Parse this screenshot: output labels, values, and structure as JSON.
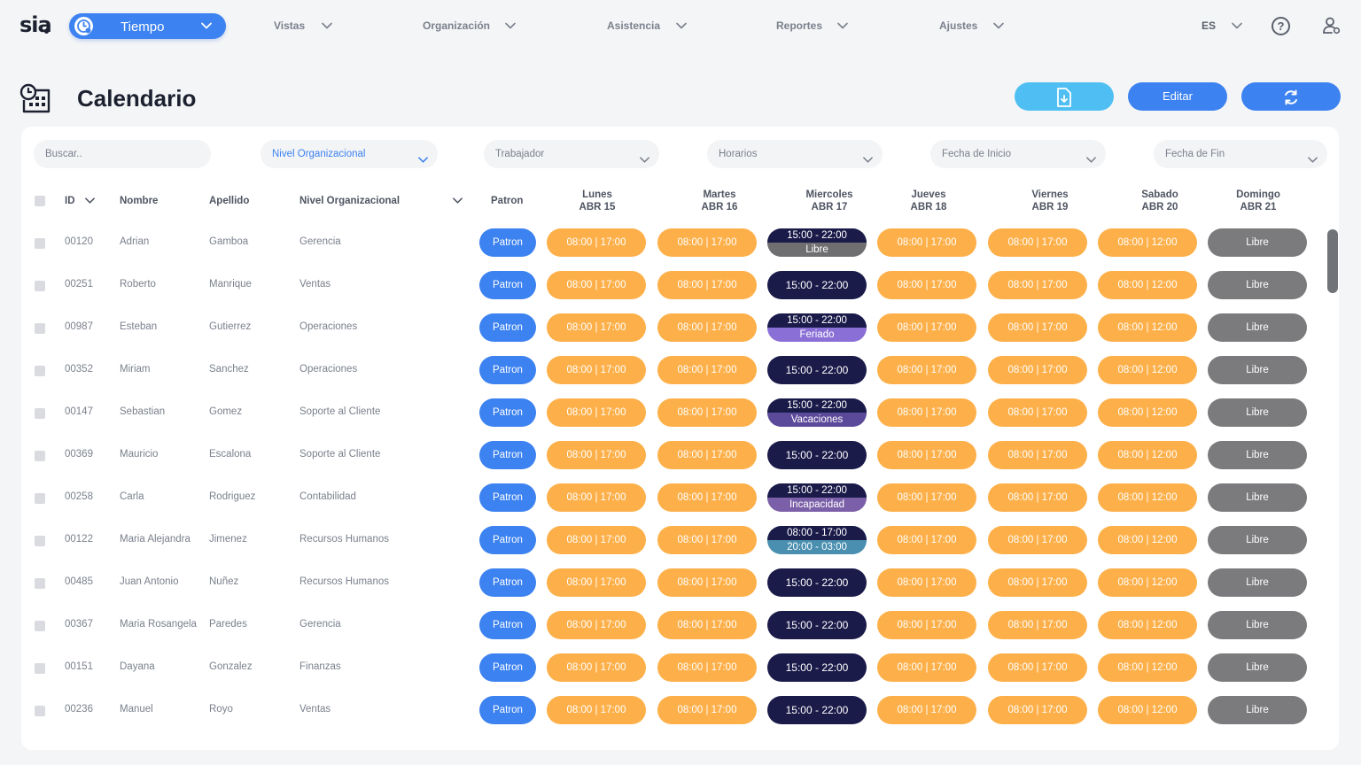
{
  "app": {
    "logo": "sia",
    "module": "Tiempo",
    "nav": [
      "Vistas",
      "Organización",
      "Asistencia",
      "Reportes",
      "Ajustes"
    ],
    "language": "ES",
    "help": "?"
  },
  "page": {
    "title": "Calendario",
    "buttons": {
      "export": "",
      "edit": "Editar",
      "refresh": ""
    }
  },
  "filters": {
    "search_placeholder": "Buscar..",
    "nivel": "Nivel Organizacional",
    "trabajador": "Trabajador",
    "horarios": "Horarios",
    "fecha_inicio": "Fecha de Inicio",
    "fecha_fin": "Fecha de Fin"
  },
  "columns": {
    "id": "ID",
    "nombre": "Nombre",
    "apellido": "Apellido",
    "nivel": "Nivel Organizacional",
    "patron": "Patron",
    "days": [
      {
        "day": "Lunes",
        "date": "ABR 15"
      },
      {
        "day": "Martes",
        "date": "ABR 16"
      },
      {
        "day": "Miercoles",
        "date": "ABR 17"
      },
      {
        "day": "Jueves",
        "date": "ABR 18"
      },
      {
        "day": "Viernes",
        "date": "ABR 19"
      },
      {
        "day": "Sabado",
        "date": "ABR 20"
      },
      {
        "day": "Domingo",
        "date": "ABR 21"
      }
    ]
  },
  "rows": [
    {
      "id": "00120",
      "nombre": "Adrian",
      "apellido": "Gamboa",
      "nivel": "Gerencia",
      "wed": {
        "top": "15:00 - 22:00",
        "bottom": "Libre",
        "bottom_color": "#6f6f72"
      }
    },
    {
      "id": "00251",
      "nombre": "Roberto",
      "apellido": "Manrique",
      "nivel": "Ventas",
      "wed": {
        "top": "15:00 - 22:00"
      }
    },
    {
      "id": "00987",
      "nombre": "Esteban",
      "apellido": "Gutierrez",
      "nivel": "Operaciones",
      "wed": {
        "top": "15:00 - 22:00",
        "bottom": "Feriado",
        "bottom_color": "#8a6fd6"
      }
    },
    {
      "id": "00352",
      "nombre": "Miriam",
      "apellido": "Sanchez",
      "nivel": "Operaciones",
      "wed": {
        "top": "15:00 - 22:00"
      }
    },
    {
      "id": "00147",
      "nombre": "Sebastian",
      "apellido": "Gomez",
      "nivel": "Soporte al Cliente",
      "wed": {
        "top": "15:00 - 22:00",
        "bottom": "Vacaciones",
        "bottom_color": "#5b4a9a"
      }
    },
    {
      "id": "00369",
      "nombre": "Mauricio",
      "apellido": "Escalona",
      "nivel": "Soporte al Cliente",
      "wed": {
        "top": "15:00 - 22:00"
      }
    },
    {
      "id": "00258",
      "nombre": "Carla",
      "apellido": "Rodriguez",
      "nivel": "Contabilidad",
      "wed": {
        "top": "15:00 - 22:00",
        "bottom": "Incapacidad",
        "bottom_color": "#7b5fa8"
      }
    },
    {
      "id": "00122",
      "nombre": "Maria Alejandra",
      "apellido": "Jimenez",
      "nivel": "Recursos Humanos",
      "wed": {
        "top": "08:00 - 17:00",
        "bottom": "20:00 - 03:00",
        "bottom_color": "#4a8fb0"
      }
    },
    {
      "id": "00485",
      "nombre": "Juan Antonio",
      "apellido": "Nuñez",
      "nivel": "Recursos Humanos",
      "wed": {
        "top": "15:00 - 22:00"
      }
    },
    {
      "id": "00367",
      "nombre": "Maria Rosangela",
      "apellido": "Paredes",
      "nivel": "Gerencia",
      "wed": {
        "top": "15:00 - 22:00"
      }
    },
    {
      "id": "00151",
      "nombre": "Dayana",
      "apellido": "Gonzalez",
      "nivel": "Finanzas",
      "wed": {
        "top": "15:00 - 22:00"
      }
    },
    {
      "id": "00236",
      "nombre": "Manuel",
      "apellido": "Royo",
      "nivel": "Ventas",
      "wed": {
        "top": "15:00 - 22:00"
      }
    }
  ],
  "cell_values": {
    "patron": "Patron",
    "weekday": "08:00 | 17:00",
    "saturday": "08:00 | 12:00",
    "sunday": "Libre"
  },
  "colors": {
    "primary": "#3c82f0",
    "export": "#4fbff3",
    "shift": "#fdb04a",
    "night": "#1b1b4a",
    "free": "#7b7b7d"
  }
}
